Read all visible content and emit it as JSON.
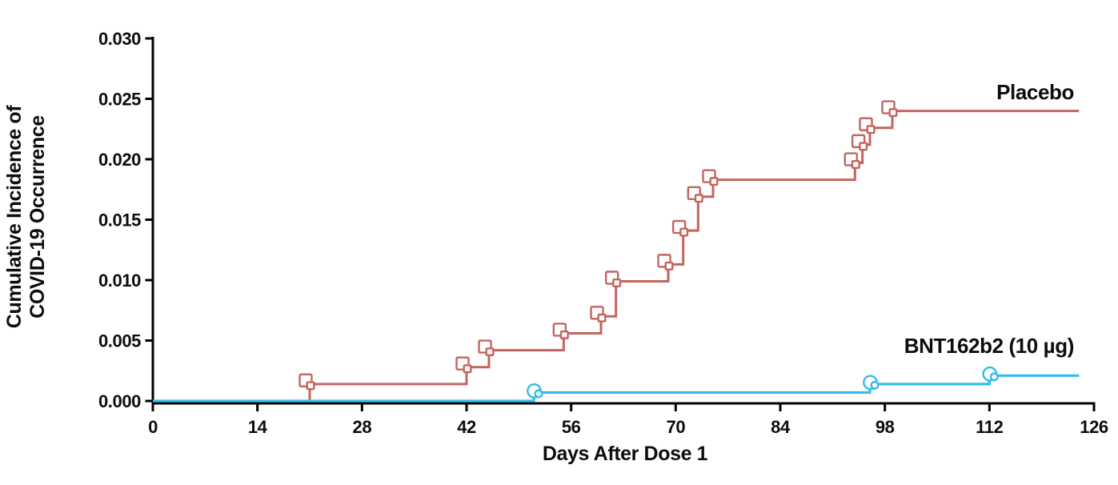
{
  "chart_data": {
    "type": "line",
    "subtype": "step-cumulative-incidence",
    "title": "",
    "xlabel": "Days After Dose 1",
    "ylabel": "Cumulative Incidence of COVID-19 Occurrence",
    "ylabel_line1": "Cumulative Incidence of",
    "ylabel_line2": "COVID-19 Occurrence",
    "xlim": [
      0,
      126
    ],
    "ylim": [
      0.0,
      0.03
    ],
    "x_ticks": [
      0,
      14,
      28,
      42,
      56,
      70,
      84,
      98,
      112,
      126
    ],
    "y_tick_labels": [
      "0.000",
      "0.005",
      "0.010",
      "0.015",
      "0.020",
      "0.025",
      "0.030"
    ],
    "y_tick_step": 0.005,
    "grid": false,
    "legend_position": "labels-at-line-end",
    "axis_color": "#000000",
    "curve_start_day": 0,
    "curve_end_day": 124,
    "series": [
      {
        "name": "Placebo",
        "color": "#C3655E",
        "marker": "open-square",
        "step_points": [
          [
            21,
            0.0014
          ],
          [
            42,
            0.0028
          ],
          [
            45,
            0.0042
          ],
          [
            55,
            0.0056
          ],
          [
            60,
            0.007
          ],
          [
            62,
            0.0099
          ],
          [
            69,
            0.0113
          ],
          [
            71,
            0.0141
          ],
          [
            73,
            0.0169
          ],
          [
            75,
            0.0183
          ],
          [
            94,
            0.0197
          ],
          [
            95,
            0.0212
          ],
          [
            96,
            0.0226
          ],
          [
            99,
            0.024
          ]
        ]
      },
      {
        "name": "BNT162b2 (10 µg)",
        "color": "#33BCEC",
        "marker": "open-circle",
        "step_points": [
          [
            51,
            0.0007
          ],
          [
            96,
            0.0014
          ],
          [
            112,
            0.0021
          ]
        ]
      }
    ]
  }
}
